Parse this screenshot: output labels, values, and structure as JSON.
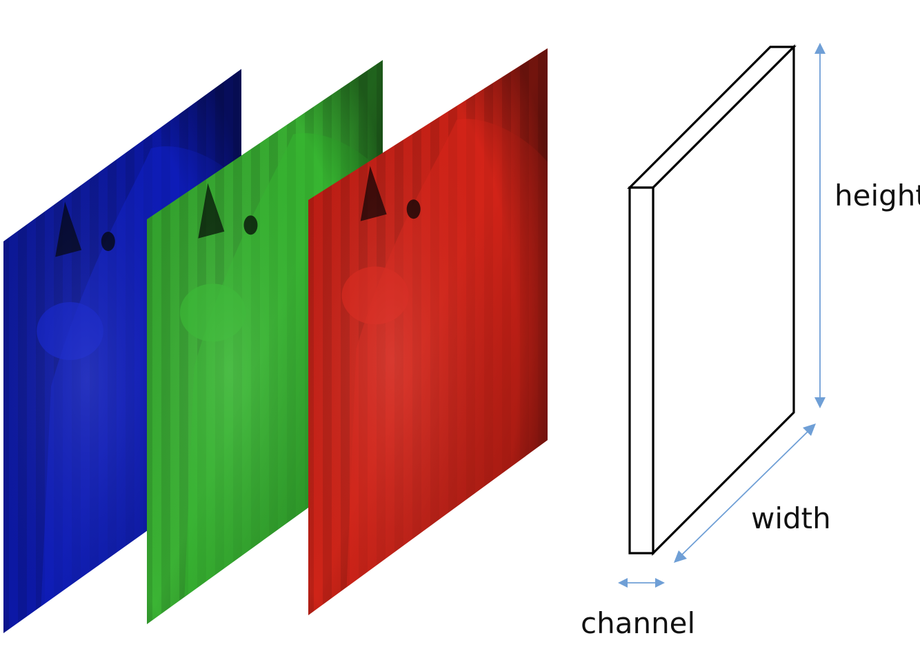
{
  "diagram": {
    "channels": [
      {
        "name": "blue-channel",
        "color": "#1020c8",
        "dark": "#000418"
      },
      {
        "name": "green-channel",
        "color": "#35b830",
        "dark": "#051806"
      },
      {
        "name": "red-channel",
        "color": "#d8241a",
        "dark": "#1a0202"
      }
    ],
    "tensor": {
      "labels": {
        "height": "height",
        "width": "width",
        "channel": "channel"
      },
      "arrow_color": "#6f9fd6",
      "edge_color": "#000000"
    }
  }
}
